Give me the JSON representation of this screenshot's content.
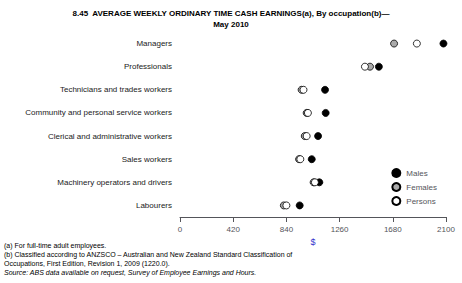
{
  "chart_data": {
    "type": "scatter",
    "orientation": "horizontal",
    "title": "8.45  AVERAGE WEEKLY ORDINARY TIME CASH EARNINGS(a), By occupation(b)—\nMay 2010",
    "categories": [
      "Managers",
      "Professionals",
      "Technicians and trades workers",
      "Community and personal service workers",
      "Clerical and administrative workers",
      "Sales workers",
      "Machinery operators and drivers",
      "Labourers"
    ],
    "series": [
      {
        "name": "Males",
        "color": "#000000",
        "values": [
          2080,
          1570,
          1145,
          1150,
          1090,
          1040,
          1100,
          945
        ]
      },
      {
        "name": "Females",
        "color": "#aaaaaa",
        "values": [
          1690,
          1500,
          960,
          1000,
          985,
          940,
          1055,
          820
        ]
      },
      {
        "name": "Persons",
        "color": "#ffffff",
        "values": [
          1870,
          1460,
          975,
          1010,
          1000,
          950,
          1065,
          840
        ]
      }
    ],
    "marker": "circle",
    "xlabel": "$",
    "xlim": [
      0,
      2100
    ],
    "xticks": [
      0,
      420,
      840,
      1260,
      1680,
      2100
    ],
    "grid": false,
    "legend": "lower right",
    "annotations": [
      "(a) For full-time adult employees.",
      "(b) Classified according to ANZSCO – Australian and New Zealand Standard Classification of\nOccupations, First Edition, Revision 1, 2009 (1220.0).",
      "Source: ABS data available on request, Survey of Employee Earnings and Hours."
    ]
  }
}
